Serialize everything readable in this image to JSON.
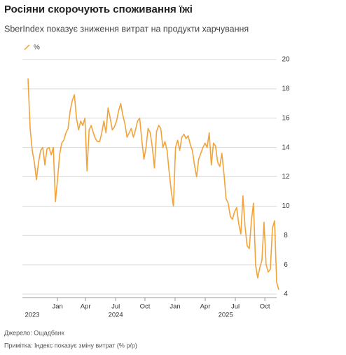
{
  "chart_data": {
    "type": "line",
    "title": "Росіяни скорочують споживання їжі",
    "subtitle": "SberIndex показує зниження витрат на продукти харчування",
    "source": "Джерело: Ощадбанк",
    "note": "Примітка: Індекс показує зміну витрат (% р/р)",
    "series": [
      {
        "name": "%",
        "color": "#f2a33a",
        "values": [
          18.7,
          15.3,
          13.8,
          13.0,
          11.8,
          13.0,
          13.8,
          14.0,
          12.8,
          13.9,
          14.0,
          13.5,
          14.0,
          10.3,
          11.8,
          13.5,
          14.3,
          14.5,
          15.0,
          15.3,
          16.5,
          17.2,
          17.6,
          16.0,
          15.2,
          15.8,
          15.5,
          16.0,
          12.4,
          15.2,
          15.5,
          15.0,
          14.6,
          14.4,
          14.4,
          15.0,
          15.8,
          15.0,
          16.7,
          16.0,
          15.2,
          15.4,
          15.8,
          16.5,
          17.0,
          16.2,
          15.6,
          14.7,
          15.0,
          15.3,
          14.7,
          15.2,
          15.8,
          16.0,
          14.5,
          13.2,
          14.0,
          15.3,
          15.0,
          14.0,
          12.6,
          15.1,
          15.5,
          15.3,
          14.0,
          14.4,
          13.8,
          12.3,
          11.0,
          10.0,
          14.0,
          14.5,
          13.8,
          14.7,
          14.9,
          14.6,
          14.8,
          14.2,
          13.8,
          12.8,
          12.0,
          13.2,
          13.6,
          14.0,
          14.3,
          14.0,
          15.0,
          12.8,
          14.3,
          14.1,
          13.0,
          12.7,
          13.6,
          12.2,
          10.5,
          10.2,
          9.3,
          9.1,
          9.6,
          9.9,
          8.8,
          8.1,
          10.7,
          8.6,
          7.3,
          7.1,
          9.0,
          10.2,
          6.0,
          5.1,
          5.8,
          6.3,
          8.9,
          6.0,
          5.5,
          5.7,
          8.5,
          9.0,
          4.8,
          4.3
        ]
      }
    ],
    "xlim": [
      0,
      119
    ],
    "xticks": [
      {
        "value": 14,
        "label": "Jan"
      },
      {
        "value": 27.3,
        "label": "Apr"
      },
      {
        "value": 41.6,
        "label": "Jul"
      },
      {
        "value": 55.5,
        "label": "Oct"
      },
      {
        "value": 69.8,
        "label": "Jan"
      },
      {
        "value": 84.1,
        "label": "Apr"
      },
      {
        "value": 98.4,
        "label": "Jul"
      },
      {
        "value": 112.4,
        "label": "Oct"
      }
    ],
    "year_ticks": [
      {
        "value": 2,
        "label": "2023"
      },
      {
        "value": 41.6,
        "label": "2024"
      },
      {
        "value": 93.8,
        "label": "2025"
      }
    ],
    "ylim": [
      4,
      20
    ],
    "yticks": [
      4,
      6,
      8,
      10,
      12,
      14,
      16,
      18,
      20
    ],
    "grid": true
  }
}
